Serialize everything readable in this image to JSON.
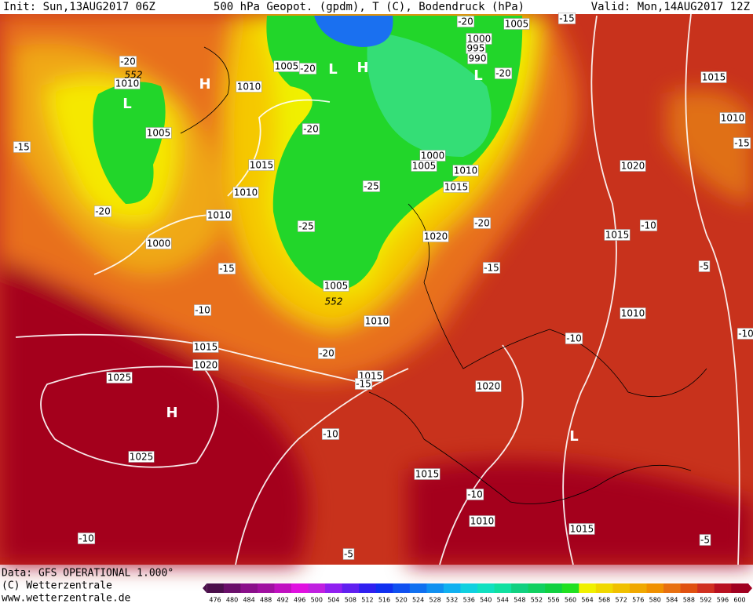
{
  "header": {
    "init": "Init: Sun,13AUG2017 06Z",
    "title": "500 hPa Geopot. (gpdm), T (C), Bodendruck (hPa)",
    "valid": "Valid: Mon,14AUG2017 12Z"
  },
  "footer": {
    "data": "Data: GFS OPERATIONAL 1.000°",
    "copyright": "(C) Wetterzentrale",
    "url": "www.wetterzentrale.de"
  },
  "colorbar": {
    "ticks": [
      476,
      480,
      484,
      488,
      492,
      496,
      500,
      504,
      508,
      512,
      516,
      520,
      524,
      528,
      532,
      536,
      540,
      544,
      548,
      552,
      556,
      560,
      564,
      568,
      572,
      576,
      580,
      584,
      588,
      592,
      596,
      600
    ],
    "colors": [
      "#4b0f4b",
      "#6a0f6a",
      "#8a0f8a",
      "#a010a0",
      "#c010c0",
      "#e010e0",
      "#c020e0",
      "#9020f0",
      "#6020f0",
      "#3020f0",
      "#1030f0",
      "#1050f0",
      "#1070f0",
      "#1090f0",
      "#10b0f0",
      "#10d0e0",
      "#10e0c0",
      "#10e0a0",
      "#10d080",
      "#10d060",
      "#10d040",
      "#20e020",
      "#f0f000",
      "#f0d800",
      "#f0c000",
      "#f0a800",
      "#f09000",
      "#e87010",
      "#e05010",
      "#d03020",
      "#b81020",
      "#a00020"
    ]
  },
  "isobar_labels": [
    1005,
    1000,
    995,
    990,
    1010,
    1010,
    1005,
    1005,
    1015,
    1010,
    1010,
    1000,
    1000,
    1005,
    1010,
    1015,
    1020,
    1005,
    1010,
    1015,
    1020,
    1015,
    1025,
    1025,
    1020,
    1015,
    1010,
    1020,
    1015,
    1010,
    1015,
    1010,
    1015
  ],
  "temperature_labels": [
    -20,
    -20,
    -20,
    -20,
    -20,
    -15,
    -15,
    -20,
    -25,
    -25,
    -20,
    -15,
    -15,
    -10,
    -20,
    -15,
    -10,
    -10,
    -10,
    -5,
    -10,
    -10,
    -5,
    -5,
    -15,
    -10
  ],
  "height_labels": [
    552,
    552
  ],
  "centers": [
    "L",
    "H",
    "L",
    "H",
    "L",
    "H",
    "L"
  ]
}
